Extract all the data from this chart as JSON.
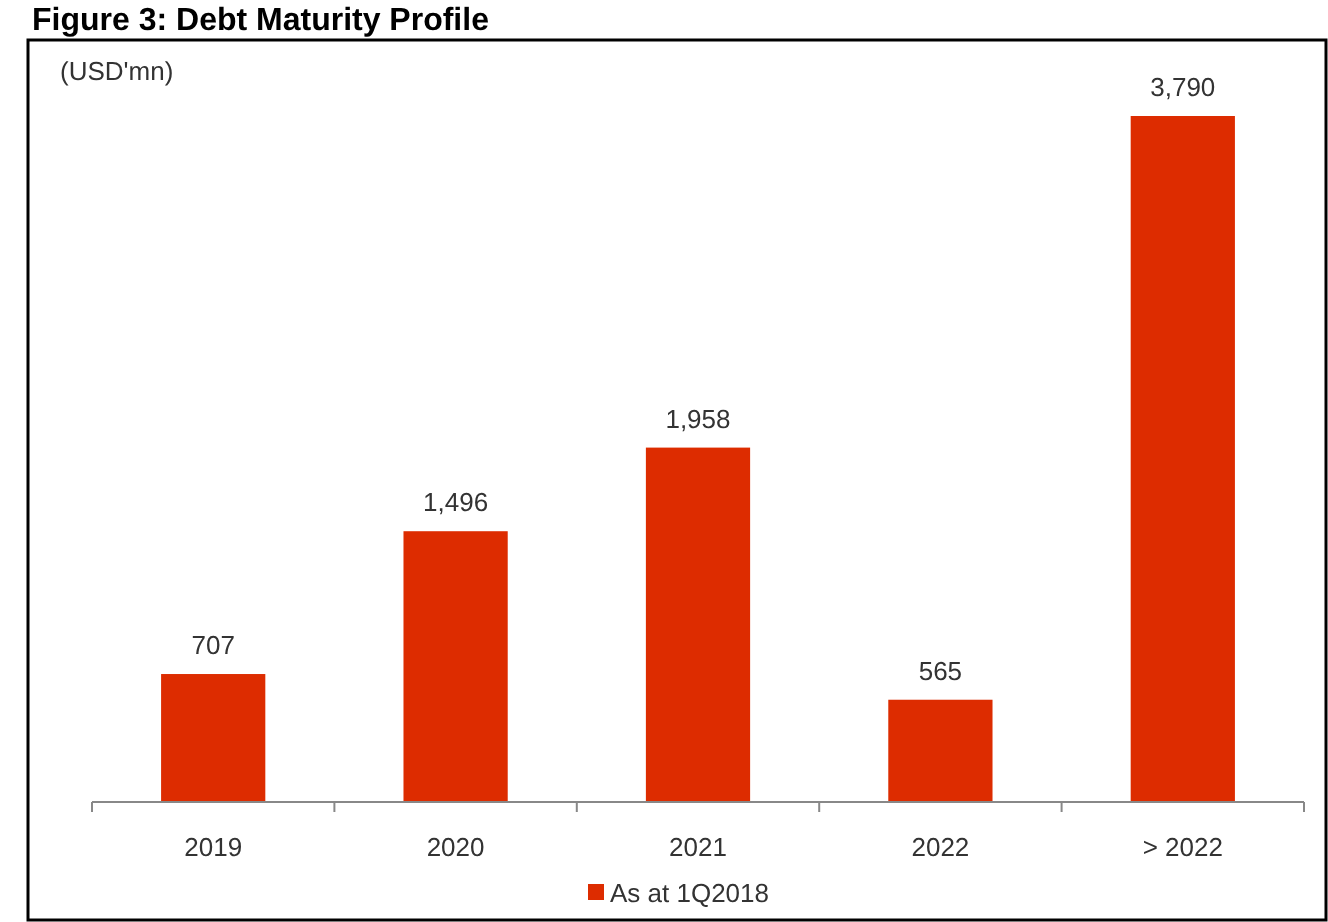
{
  "chart_data": {
    "type": "bar",
    "title": "Figure 3: Debt Maturity Profile",
    "ylabel": "(USD'mn)",
    "categories": [
      "2019",
      "2020",
      "2021",
      "2022",
      "> 2022"
    ],
    "series": [
      {
        "name": "As at 1Q2018",
        "color": "#dd2c00",
        "values": [
          707,
          1496,
          1958,
          565,
          3790
        ],
        "value_labels": [
          "707",
          "1,496",
          "1,958",
          "565",
          "3,790"
        ]
      }
    ],
    "legend": "bottom"
  }
}
